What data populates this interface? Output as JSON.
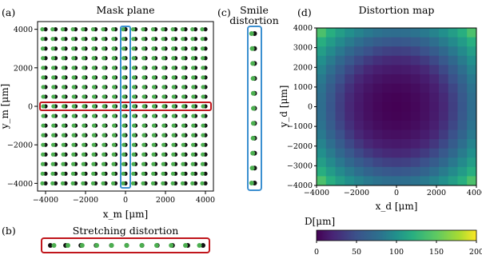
{
  "panels": {
    "a": {
      "letter": "(a)",
      "title": "Mask plane",
      "xlabel": "x_m [μm]",
      "ylabel": "y_m [μm]",
      "xticks": [
        "−4000",
        "−2000",
        "0",
        "2000",
        "4000"
      ],
      "yticks": [
        "4000",
        "2000",
        "0",
        "−2000",
        "−4000"
      ]
    },
    "b": {
      "letter": "(b)",
      "title": "Stretching distortion"
    },
    "c": {
      "letter": "(c)",
      "title_line1": "Smile",
      "title_line2": "distortion"
    },
    "d": {
      "letter": "(d)",
      "title": "Distortion map",
      "xlabel": "x_d [μm]",
      "ylabel": "y_d [μm]",
      "xticks": [
        "−4000",
        "−2000",
        "0",
        "2000",
        "4000"
      ],
      "yticks": [
        "4000",
        "3000",
        "2000",
        "1000",
        "0",
        "−1000",
        "−2000",
        "−3000",
        "−4000"
      ],
      "colorbar_label": "D[μm]",
      "colorbar_ticks": [
        "0",
        "50",
        "100",
        "150",
        "200"
      ]
    }
  },
  "colors": {
    "green_dot": "#4caf50",
    "black_dot": "#111111",
    "highlight_row": "#c0151b",
    "highlight_col": "#3b8fd0"
  },
  "chart_data": [
    {
      "type": "scatter",
      "title": "Mask plane",
      "xlabel": "x_m [μm]",
      "ylabel": "y_m [μm]",
      "xlim": [
        -4400,
        4400
      ],
      "ylim": [
        -4400,
        4400
      ],
      "grid_points": {
        "x": [
          -4000,
          -3500,
          -3000,
          -2500,
          -2000,
          -1500,
          -1000,
          -500,
          0,
          500,
          1000,
          1500,
          2000,
          2500,
          3000,
          3500,
          4000
        ],
        "y": [
          -4000,
          -3500,
          -3000,
          -2500,
          -2000,
          -1500,
          -1000,
          -500,
          0,
          500,
          1000,
          1500,
          2000,
          2500,
          3000,
          3500,
          4000
        ]
      },
      "series": [
        {
          "name": "",
          "color": "#111111"
        },
        {
          "name": "",
          "color": "#4caf50"
        }
      ],
      "highlights": {
        "row_y": 0,
        "column_x": 0
      }
    },
    {
      "type": "heatmap",
      "title": "Distortion map",
      "xlabel": "x_d [μm]",
      "ylabel": "y_d [μm]",
      "xlim": [
        -4000,
        4000
      ],
      "ylim": [
        -4000,
        4000
      ],
      "colorbar": {
        "label": "D[μm]",
        "range": [
          0,
          200
        ],
        "colormap": "viridis"
      },
      "grid_size": 17,
      "center_value": 0,
      "edge_mid_value": 80,
      "corner_value": 160
    }
  ]
}
